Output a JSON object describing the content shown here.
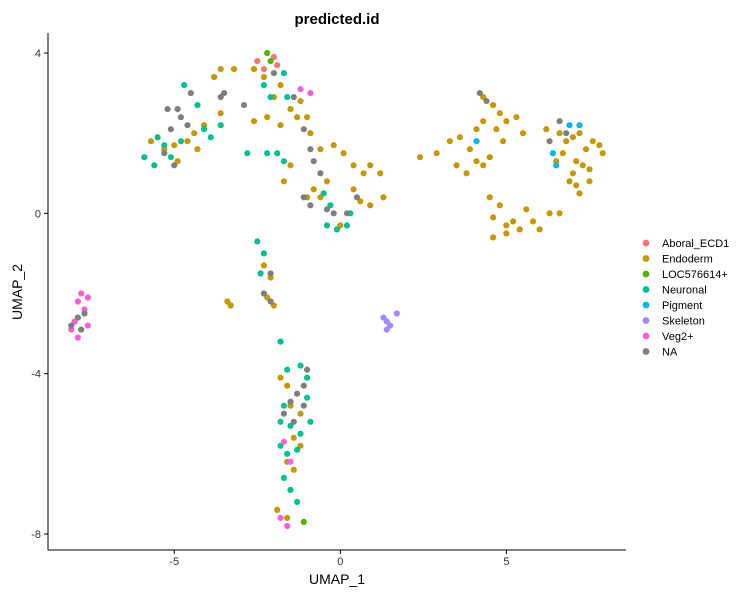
{
  "chart_data": {
    "type": "scatter",
    "title": "predicted.id",
    "xlabel": "UMAP_1",
    "ylabel": "UMAP_2",
    "xlim": [
      -8.8,
      8.6
    ],
    "ylim": [
      -8.4,
      4.5
    ],
    "xticks": [
      -5,
      0,
      5
    ],
    "yticks": [
      -8,
      -4,
      0,
      4
    ],
    "grid": false,
    "legend_position": "right",
    "series": [
      {
        "name": "Aboral_ECD1",
        "color": "#F8766D",
        "points": [
          [
            -2.5,
            3.8
          ],
          [
            -2.0,
            3.9
          ],
          [
            -2.3,
            3.6
          ],
          [
            -1.9,
            3.7
          ]
        ]
      },
      {
        "name": "Endoderm",
        "color": "#C49A00",
        "points": [
          [
            -5.7,
            1.8
          ],
          [
            -5.3,
            1.6
          ],
          [
            -5.0,
            1.7
          ],
          [
            -4.9,
            1.3
          ],
          [
            -4.6,
            1.8
          ],
          [
            -4.3,
            1.6
          ],
          [
            -4.4,
            2.0
          ],
          [
            -4.1,
            2.2
          ],
          [
            -3.6,
            2.5
          ],
          [
            -3.8,
            3.4
          ],
          [
            -3.6,
            3.6
          ],
          [
            -3.2,
            3.6
          ],
          [
            -2.6,
            3.6
          ],
          [
            -2.3,
            3.4
          ],
          [
            -2.0,
            2.9
          ],
          [
            -1.8,
            3.2
          ],
          [
            -2.6,
            2.3
          ],
          [
            -2.2,
            2.4
          ],
          [
            -1.8,
            2.2
          ],
          [
            -1.5,
            2.6
          ],
          [
            -1.3,
            2.4
          ],
          [
            -1.2,
            2.8
          ],
          [
            -1.0,
            2.4
          ],
          [
            -0.9,
            2.0
          ],
          [
            -0.6,
            1.6
          ],
          [
            -0.2,
            1.7
          ],
          [
            0.1,
            1.5
          ],
          [
            0.4,
            1.2
          ],
          [
            0.7,
            1.0
          ],
          [
            0.9,
            1.2
          ],
          [
            1.2,
            1.0
          ],
          [
            0.4,
            0.6
          ],
          [
            0.6,
            0.3
          ],
          [
            0.9,
            0.2
          ],
          [
            1.3,
            0.4
          ],
          [
            -0.4,
            0.8
          ],
          [
            -0.8,
            0.6
          ],
          [
            -1.0,
            0.4
          ],
          [
            -0.6,
            0.4
          ],
          [
            0.0,
            -0.3
          ],
          [
            -1.5,
            1.2
          ],
          [
            -1.7,
            0.8
          ],
          [
            -2.3,
            -1.3
          ],
          [
            -2.1,
            -1.6
          ],
          [
            -2.2,
            -2.1
          ],
          [
            -2.0,
            -2.3
          ],
          [
            -3.4,
            -2.2
          ],
          [
            -3.3,
            -2.3
          ],
          [
            -1.8,
            -4.1
          ],
          [
            -1.6,
            -4.3
          ],
          [
            -1.5,
            -4.8
          ],
          [
            -1.2,
            -5.0
          ],
          [
            -1.4,
            -5.6
          ],
          [
            -1.2,
            -5.8
          ],
          [
            -1.6,
            -6.2
          ],
          [
            -1.4,
            -6.4
          ],
          [
            -1.9,
            -7.4
          ],
          [
            -1.6,
            -7.6
          ],
          [
            2.4,
            1.4
          ],
          [
            2.9,
            1.5
          ],
          [
            3.3,
            1.8
          ],
          [
            3.6,
            1.9
          ],
          [
            3.9,
            1.6
          ],
          [
            4.1,
            2.1
          ],
          [
            4.3,
            2.3
          ],
          [
            4.7,
            2.1
          ],
          [
            4.9,
            1.8
          ],
          [
            3.5,
            1.2
          ],
          [
            3.8,
            1.0
          ],
          [
            4.1,
            1.3
          ],
          [
            4.3,
            1.2
          ],
          [
            4.5,
            1.4
          ],
          [
            4.5,
            0.4
          ],
          [
            4.8,
            0.2
          ],
          [
            4.6,
            -0.1
          ],
          [
            5.0,
            -0.3
          ],
          [
            5.2,
            -0.2
          ],
          [
            5.4,
            -0.4
          ],
          [
            5.6,
            0.1
          ],
          [
            5.8,
            -0.2
          ],
          [
            6.0,
            -0.4
          ],
          [
            6.3,
            0.0
          ],
          [
            6.6,
            0.0
          ],
          [
            4.6,
            -0.6
          ],
          [
            5.0,
            -0.5
          ],
          [
            4.3,
            2.9
          ],
          [
            4.6,
            2.7
          ],
          [
            4.8,
            2.5
          ],
          [
            5.0,
            2.3
          ],
          [
            5.3,
            2.4
          ],
          [
            5.5,
            2.0
          ],
          [
            6.2,
            2.1
          ],
          [
            6.6,
            2.0
          ],
          [
            6.8,
            1.8
          ],
          [
            7.0,
            1.9
          ],
          [
            7.2,
            2.0
          ],
          [
            7.4,
            1.6
          ],
          [
            7.6,
            1.8
          ],
          [
            7.8,
            1.7
          ],
          [
            7.9,
            1.5
          ],
          [
            7.1,
            1.3
          ],
          [
            7.3,
            1.2
          ],
          [
            7.5,
            1.1
          ],
          [
            6.9,
            0.8
          ],
          [
            7.1,
            0.7
          ],
          [
            7.2,
            0.5
          ],
          [
            7.5,
            0.8
          ],
          [
            7.0,
            1.0
          ],
          [
            6.5,
            1.3
          ],
          [
            6.7,
            1.5
          ]
        ]
      },
      {
        "name": "LOC576614+",
        "color": "#53B400",
        "points": [
          [
            -2.2,
            4.0
          ],
          [
            -2.1,
            3.8
          ],
          [
            -1.1,
            -7.7
          ]
        ]
      },
      {
        "name": "Neuronal",
        "color": "#00C094",
        "points": [
          [
            -5.9,
            1.4
          ],
          [
            -5.6,
            1.2
          ],
          [
            -5.5,
            1.9
          ],
          [
            -5.3,
            1.7
          ],
          [
            -5.1,
            1.4
          ],
          [
            -4.8,
            1.8
          ],
          [
            -4.7,
            3.2
          ],
          [
            -4.3,
            2.7
          ],
          [
            -4.1,
            2.1
          ],
          [
            -3.9,
            1.9
          ],
          [
            -3.6,
            2.2
          ],
          [
            -2.8,
            1.5
          ],
          [
            -2.3,
            3.2
          ],
          [
            -2.1,
            2.9
          ],
          [
            -1.7,
            3.5
          ],
          [
            -1.6,
            2.9
          ],
          [
            -2.2,
            1.5
          ],
          [
            -1.9,
            1.5
          ],
          [
            -1.7,
            1.3
          ],
          [
            -0.5,
            0.5
          ],
          [
            -0.3,
            0.2
          ],
          [
            -0.4,
            -0.3
          ],
          [
            -0.1,
            -0.4
          ],
          [
            0.2,
            -0.3
          ],
          [
            0.3,
            0.0
          ],
          [
            -2.5,
            -0.7
          ],
          [
            -2.3,
            -1.0
          ],
          [
            -2.4,
            -1.5
          ],
          [
            -1.8,
            -3.2
          ],
          [
            -1.6,
            -3.9
          ],
          [
            -1.2,
            -3.8
          ],
          [
            -1.0,
            -4.1
          ],
          [
            -1.7,
            -4.8
          ],
          [
            -1.5,
            -5.3
          ],
          [
            -1.2,
            -5.5
          ],
          [
            -0.9,
            -5.2
          ],
          [
            -1.8,
            -5.8
          ],
          [
            -1.6,
            -6.0
          ],
          [
            -1.3,
            -5.9
          ],
          [
            -1.7,
            -6.6
          ],
          [
            -1.5,
            -6.9
          ],
          [
            -1.3,
            -7.2
          ],
          [
            -1.8,
            -5.2
          ],
          [
            -1.0,
            -4.6
          ]
        ]
      },
      {
        "name": "Pigment",
        "color": "#00B6EB",
        "points": [
          [
            4.1,
            1.8
          ],
          [
            6.4,
            1.5
          ],
          [
            6.9,
            2.2
          ],
          [
            7.2,
            2.2
          ],
          [
            6.5,
            1.2
          ]
        ]
      },
      {
        "name": "Skeleton",
        "color": "#A58AFF",
        "points": [
          [
            1.3,
            -2.6
          ],
          [
            1.4,
            -2.7
          ],
          [
            1.5,
            -2.8
          ],
          [
            1.7,
            -2.5
          ],
          [
            1.4,
            -2.9
          ]
        ]
      },
      {
        "name": "Veg2+",
        "color": "#FB61D7",
        "points": [
          [
            -7.9,
            -2.2
          ],
          [
            -7.8,
            -2.0
          ],
          [
            -7.6,
            -2.1
          ],
          [
            -7.7,
            -2.4
          ],
          [
            -8.1,
            -2.9
          ],
          [
            -7.9,
            -3.1
          ],
          [
            -8.0,
            -2.7
          ],
          [
            -7.6,
            -2.8
          ],
          [
            -0.9,
            3.0
          ],
          [
            -1.2,
            3.1
          ],
          [
            -1.7,
            -5.7
          ],
          [
            -1.5,
            -6.2
          ],
          [
            -1.8,
            -7.6
          ],
          [
            -1.6,
            -7.8
          ]
        ]
      },
      {
        "name": "NA",
        "color": "#7F7F7F",
        "points": [
          [
            -5.2,
            2.6
          ],
          [
            -4.9,
            2.6
          ],
          [
            -4.8,
            2.4
          ],
          [
            -4.6,
            2.2
          ],
          [
            -4.5,
            3.0
          ],
          [
            -5.1,
            2.1
          ],
          [
            -5.3,
            1.5
          ],
          [
            -5.0,
            1.2
          ],
          [
            -3.6,
            2.9
          ],
          [
            -3.5,
            3.0
          ],
          [
            -2.9,
            2.7
          ],
          [
            -2.0,
            3.5
          ],
          [
            -1.4,
            2.9
          ],
          [
            -1.1,
            2.1
          ],
          [
            -0.9,
            1.6
          ],
          [
            -0.8,
            1.3
          ],
          [
            -0.6,
            1.0
          ],
          [
            -1.1,
            0.4
          ],
          [
            -0.9,
            0.2
          ],
          [
            -0.4,
            0.1
          ],
          [
            -0.2,
            0.0
          ],
          [
            0.5,
            0.4
          ],
          [
            0.2,
            0.0
          ],
          [
            -2.1,
            -1.5
          ],
          [
            -2.3,
            -2.0
          ],
          [
            -2.1,
            -2.2
          ],
          [
            -8.1,
            -2.8
          ],
          [
            -7.9,
            -2.6
          ],
          [
            -7.7,
            -2.5
          ],
          [
            -7.8,
            -2.9
          ],
          [
            -1.0,
            -3.9
          ],
          [
            -1.1,
            -4.3
          ],
          [
            -1.3,
            -4.5
          ],
          [
            -1.5,
            -4.7
          ],
          [
            -1.7,
            -5.0
          ],
          [
            -1.4,
            -5.2
          ],
          [
            -1.1,
            -4.8
          ],
          [
            4.2,
            3.0
          ],
          [
            4.4,
            2.8
          ],
          [
            6.3,
            1.8
          ],
          [
            6.8,
            2.0
          ],
          [
            6.6,
            2.3
          ]
        ]
      }
    ]
  }
}
